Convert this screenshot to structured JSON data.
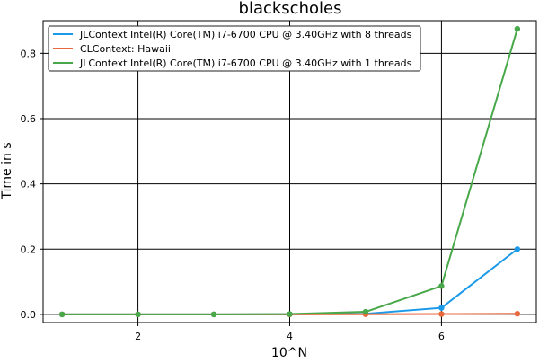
{
  "chart_data": {
    "type": "line",
    "title": "blackscholes",
    "xlabel": "10^N",
    "ylabel": "Time in s",
    "x": [
      1,
      2,
      3,
      4,
      5,
      6,
      7
    ],
    "xlim": [
      0.75,
      7.25
    ],
    "ylim": [
      -0.025,
      0.9
    ],
    "xticks": [
      2,
      4,
      6
    ],
    "yticks": [
      0.0,
      0.2,
      0.4,
      0.6,
      0.8
    ],
    "xtick_labels": [
      "2",
      "4",
      "6"
    ],
    "ytick_labels": [
      "0.0",
      "0.2",
      "0.4",
      "0.6",
      "0.8"
    ],
    "grid": true,
    "legend_position": "top-left",
    "series": [
      {
        "name": "JLContext Intel(R) Core(TM) i7-6700 CPU @ 3.40GHz with 8 threads",
        "color": "#1a9ae8",
        "values": [
          0.0,
          0.0,
          0.0,
          0.0005,
          0.002,
          0.02,
          0.2
        ]
      },
      {
        "name": "CLContext: Hawaii",
        "color": "#e8693b",
        "values": [
          0.0,
          0.0,
          0.0,
          0.0,
          0.0005,
          0.001,
          0.002
        ]
      },
      {
        "name": "JLContext Intel(R) Core(TM) i7-6700 CPU @ 3.40GHz with 1 threads",
        "color": "#48a84a",
        "values": [
          0.0,
          0.0,
          0.0,
          0.001,
          0.008,
          0.087,
          0.875
        ]
      }
    ]
  }
}
